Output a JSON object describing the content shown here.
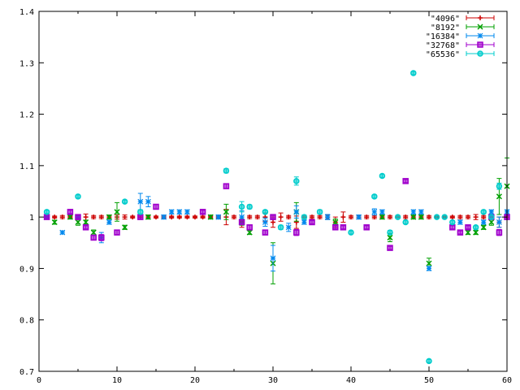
{
  "chart_data": {
    "type": "scatter",
    "title": "",
    "xlabel": "",
    "ylabel": "",
    "xlim": [
      0,
      60
    ],
    "ylim": [
      0.7,
      1.4
    ],
    "x_ticks": [
      0,
      10,
      20,
      30,
      40,
      50,
      60
    ],
    "y_ticks": [
      0.7,
      0.8,
      0.9,
      1,
      1.1,
      1.2,
      1.3,
      1.4
    ],
    "x_tick_labels": [
      "0",
      "10",
      "20",
      "30",
      "40",
      "50",
      "60"
    ],
    "y_tick_labels": [
      "0.7",
      "0.8",
      "0.9",
      "1",
      "1.1",
      "1.2",
      "1.3",
      "1.4"
    ],
    "grid": false,
    "legend_position": "top-right",
    "series": [
      {
        "name": "\"4096\"",
        "color": "#cc0000",
        "marker": "plus",
        "points": [
          {
            "x": 1,
            "y": 1.0,
            "err": 0.002
          },
          {
            "x": 2,
            "y": 1.0,
            "err": 0.002
          },
          {
            "x": 3,
            "y": 1.0,
            "err": 0.003
          },
          {
            "x": 4,
            "y": 1.0,
            "err": 0.002
          },
          {
            "x": 5,
            "y": 1.0,
            "err": 0.004
          },
          {
            "x": 6,
            "y": 1.0,
            "err": 0.006
          },
          {
            "x": 7,
            "y": 1.0,
            "err": 0.003
          },
          {
            "x": 8,
            "y": 1.0,
            "err": 0.003
          },
          {
            "x": 9,
            "y": 1.0,
            "err": 0.003
          },
          {
            "x": 10,
            "y": 1.0,
            "err": 0.004
          },
          {
            "x": 11,
            "y": 1.0,
            "err": 0.004
          },
          {
            "x": 12,
            "y": 1.0,
            "err": 0.002
          },
          {
            "x": 13,
            "y": 1.0,
            "err": 0.003
          },
          {
            "x": 14,
            "y": 1.0,
            "err": 0.003
          },
          {
            "x": 15,
            "y": 1.0,
            "err": 0.002
          },
          {
            "x": 16,
            "y": 1.0,
            "err": 0.002
          },
          {
            "x": 17,
            "y": 1.0,
            "err": 0.002
          },
          {
            "x": 18,
            "y": 1.0,
            "err": 0.002
          },
          {
            "x": 19,
            "y": 1.0,
            "err": 0.002
          },
          {
            "x": 20,
            "y": 1.0,
            "err": 0.002
          },
          {
            "x": 21,
            "y": 1.0,
            "err": 0.002
          },
          {
            "x": 22,
            "y": 1.0,
            "err": 0.002
          },
          {
            "x": 23,
            "y": 1.0,
            "err": 0.002
          },
          {
            "x": 24,
            "y": 1.0,
            "err": 0.015
          },
          {
            "x": 25,
            "y": 1.0,
            "err": 0.003
          },
          {
            "x": 26,
            "y": 0.99,
            "err": 0.01
          },
          {
            "x": 27,
            "y": 1.0,
            "err": 0.003
          },
          {
            "x": 28,
            "y": 1.0,
            "err": 0.003
          },
          {
            "x": 29,
            "y": 1.0,
            "err": 0.008
          },
          {
            "x": 30,
            "y": 0.99,
            "err": 0.01
          },
          {
            "x": 31,
            "y": 1.0,
            "err": 0.008
          },
          {
            "x": 32,
            "y": 1.0,
            "err": 0.003
          },
          {
            "x": 33,
            "y": 0.99,
            "err": 0.012
          },
          {
            "x": 34,
            "y": 1.0,
            "err": 0.003
          },
          {
            "x": 35,
            "y": 1.0,
            "err": 0.003
          },
          {
            "x": 36,
            "y": 1.0,
            "err": 0.003
          },
          {
            "x": 37,
            "y": 1.0,
            "err": 0.004
          },
          {
            "x": 38,
            "y": 0.99,
            "err": 0.01
          },
          {
            "x": 39,
            "y": 1.0,
            "err": 0.01
          },
          {
            "x": 40,
            "y": 1.0,
            "err": 0.003
          },
          {
            "x": 41,
            "y": 1.0,
            "err": 0.003
          },
          {
            "x": 42,
            "y": 1.0,
            "err": 0.003
          },
          {
            "x": 43,
            "y": 1.0,
            "err": 0.003
          },
          {
            "x": 44,
            "y": 1.0,
            "err": 0.003
          },
          {
            "x": 45,
            "y": 1.0,
            "err": 0.003
          },
          {
            "x": 46,
            "y": 1.0,
            "err": 0.003
          },
          {
            "x": 47,
            "y": 1.0,
            "err": 0.003
          },
          {
            "x": 48,
            "y": 1.0,
            "err": 0.003
          },
          {
            "x": 49,
            "y": 1.0,
            "err": 0.003
          },
          {
            "x": 50,
            "y": 1.0,
            "err": 0.003
          },
          {
            "x": 51,
            "y": 1.0,
            "err": 0.002
          },
          {
            "x": 52,
            "y": 1.0,
            "err": 0.002
          },
          {
            "x": 53,
            "y": 1.0,
            "err": 0.002
          },
          {
            "x": 54,
            "y": 1.0,
            "err": 0.003
          },
          {
            "x": 55,
            "y": 1.0,
            "err": 0.003
          },
          {
            "x": 56,
            "y": 1.0,
            "err": 0.005
          },
          {
            "x": 57,
            "y": 1.0,
            "err": 0.003
          },
          {
            "x": 58,
            "y": 1.0,
            "err": 0.003
          },
          {
            "x": 59,
            "y": 0.99,
            "err": 0.01
          },
          {
            "x": 60,
            "y": 1.0,
            "err": 0.003
          }
        ]
      },
      {
        "name": "\"8192\"",
        "color": "#00a000",
        "marker": "cross",
        "points": [
          {
            "x": 1,
            "y": 1.0,
            "err": 0.003
          },
          {
            "x": 2,
            "y": 0.99,
            "err": 0.004
          },
          {
            "x": 4,
            "y": 1.0,
            "err": 0.004
          },
          {
            "x": 5,
            "y": 0.99,
            "err": 0.006
          },
          {
            "x": 6,
            "y": 0.99,
            "err": 0.004
          },
          {
            "x": 7,
            "y": 0.97,
            "err": 0.005
          },
          {
            "x": 9,
            "y": 1.0,
            "err": 0.004
          },
          {
            "x": 10,
            "y": 1.01,
            "err": 0.018
          },
          {
            "x": 11,
            "y": 0.98,
            "err": 0.004
          },
          {
            "x": 14,
            "y": 1.0,
            "err": 0.004
          },
          {
            "x": 22,
            "y": 1.0,
            "err": 0.004
          },
          {
            "x": 24,
            "y": 1.01,
            "err": 0.015
          },
          {
            "x": 26,
            "y": 0.99,
            "err": 0.006
          },
          {
            "x": 27,
            "y": 0.97,
            "err": 0.004
          },
          {
            "x": 30,
            "y": 0.91,
            "err": 0.04
          },
          {
            "x": 33,
            "y": 1.01,
            "err": 0.018
          },
          {
            "x": 38,
            "y": 0.99,
            "err": 0.006
          },
          {
            "x": 44,
            "y": 1.0,
            "err": 0.004
          },
          {
            "x": 45,
            "y": 0.96,
            "err": 0.008
          },
          {
            "x": 48,
            "y": 1.0,
            "err": 0.004
          },
          {
            "x": 49,
            "y": 1.0,
            "err": 0.004
          },
          {
            "x": 50,
            "y": 0.91,
            "err": 0.01
          },
          {
            "x": 55,
            "y": 0.97,
            "err": 0.004
          },
          {
            "x": 56,
            "y": 0.97,
            "err": 0.004
          },
          {
            "x": 57,
            "y": 0.98,
            "err": 0.004
          },
          {
            "x": 58,
            "y": 0.99,
            "err": 0.006
          },
          {
            "x": 59,
            "y": 1.04,
            "err": 0.035
          },
          {
            "x": 60,
            "y": 1.06,
            "err": 0.055
          }
        ]
      },
      {
        "name": "\"16384\"",
        "color": "#0088ee",
        "marker": "star",
        "points": [
          {
            "x": 1,
            "y": 1.0,
            "err": 0.003
          },
          {
            "x": 3,
            "y": 0.97,
            "err": 0.003
          },
          {
            "x": 5,
            "y": 1.0,
            "err": 0.003
          },
          {
            "x": 8,
            "y": 0.96,
            "err": 0.01
          },
          {
            "x": 9,
            "y": 0.99,
            "err": 0.004
          },
          {
            "x": 13,
            "y": 1.03,
            "err": 0.016
          },
          {
            "x": 14,
            "y": 1.03,
            "err": 0.01
          },
          {
            "x": 16,
            "y": 1.0,
            "err": 0.004
          },
          {
            "x": 17,
            "y": 1.01,
            "err": 0.004
          },
          {
            "x": 18,
            "y": 1.01,
            "err": 0.004
          },
          {
            "x": 19,
            "y": 1.01,
            "err": 0.004
          },
          {
            "x": 23,
            "y": 1.0,
            "err": 0.004
          },
          {
            "x": 26,
            "y": 1.0,
            "err": 0.012
          },
          {
            "x": 29,
            "y": 0.99,
            "err": 0.008
          },
          {
            "x": 30,
            "y": 0.92,
            "err": 0.025
          },
          {
            "x": 32,
            "y": 0.98,
            "err": 0.008
          },
          {
            "x": 33,
            "y": 1.01,
            "err": 0.012
          },
          {
            "x": 34,
            "y": 0.99,
            "err": 0.004
          },
          {
            "x": 37,
            "y": 1.0,
            "err": 0.005
          },
          {
            "x": 41,
            "y": 1.0,
            "err": 0.004
          },
          {
            "x": 43,
            "y": 1.01,
            "err": 0.006
          },
          {
            "x": 44,
            "y": 1.01,
            "err": 0.004
          },
          {
            "x": 48,
            "y": 1.01,
            "err": 0.004
          },
          {
            "x": 49,
            "y": 1.01,
            "err": 0.004
          },
          {
            "x": 50,
            "y": 0.9,
            "err": 0.004
          },
          {
            "x": 54,
            "y": 0.99,
            "err": 0.004
          },
          {
            "x": 57,
            "y": 0.99,
            "err": 0.004
          },
          {
            "x": 58,
            "y": 1.01,
            "err": 0.004
          },
          {
            "x": 59,
            "y": 0.99,
            "err": 0.01
          },
          {
            "x": 60,
            "y": 1.01,
            "err": 0.004
          }
        ]
      },
      {
        "name": "\"32768\"",
        "color": "#a000cc",
        "marker": "square",
        "points": [
          {
            "x": 1,
            "y": 1.0,
            "err": 0.002
          },
          {
            "x": 4,
            "y": 1.01,
            "err": 0.003
          },
          {
            "x": 5,
            "y": 1.0,
            "err": 0.003
          },
          {
            "x": 6,
            "y": 0.98,
            "err": 0.003
          },
          {
            "x": 7,
            "y": 0.96,
            "err": 0.004
          },
          {
            "x": 8,
            "y": 0.96,
            "err": 0.006
          },
          {
            "x": 10,
            "y": 0.97,
            "err": 0.004
          },
          {
            "x": 13,
            "y": 1.0,
            "err": 0.003
          },
          {
            "x": 15,
            "y": 1.02,
            "err": 0.004
          },
          {
            "x": 21,
            "y": 1.01,
            "err": 0.003
          },
          {
            "x": 24,
            "y": 1.06,
            "err": 0.004
          },
          {
            "x": 26,
            "y": 0.99,
            "err": 0.004
          },
          {
            "x": 27,
            "y": 0.98,
            "err": 0.004
          },
          {
            "x": 29,
            "y": 0.97,
            "err": 0.004
          },
          {
            "x": 30,
            "y": 1.0,
            "err": 0.003
          },
          {
            "x": 33,
            "y": 0.97,
            "err": 0.006
          },
          {
            "x": 35,
            "y": 0.99,
            "err": 0.003
          },
          {
            "x": 38,
            "y": 0.98,
            "err": 0.003
          },
          {
            "x": 39,
            "y": 0.98,
            "err": 0.003
          },
          {
            "x": 42,
            "y": 0.98,
            "err": 0.003
          },
          {
            "x": 45,
            "y": 0.94,
            "err": 0.003
          },
          {
            "x": 47,
            "y": 1.07,
            "err": 0.003
          },
          {
            "x": 53,
            "y": 0.98,
            "err": 0.003
          },
          {
            "x": 54,
            "y": 0.97,
            "err": 0.003
          },
          {
            "x": 55,
            "y": 0.98,
            "err": 0.003
          },
          {
            "x": 58,
            "y": 1.0,
            "err": 0.003
          },
          {
            "x": 59,
            "y": 0.97,
            "err": 0.006
          },
          {
            "x": 60,
            "y": 1.0,
            "err": 0.003
          }
        ]
      },
      {
        "name": "\"65536\"",
        "color": "#00cccc",
        "marker": "circle",
        "points": [
          {
            "x": 1,
            "y": 1.01,
            "err": 0.003
          },
          {
            "x": 5,
            "y": 1.04,
            "err": 0.003
          },
          {
            "x": 11,
            "y": 1.03,
            "err": 0.003
          },
          {
            "x": 13,
            "y": 1.01,
            "err": 0.004
          },
          {
            "x": 24,
            "y": 1.09,
            "err": 0.004
          },
          {
            "x": 26,
            "y": 1.02,
            "err": 0.01
          },
          {
            "x": 27,
            "y": 1.02,
            "err": 0.004
          },
          {
            "x": 29,
            "y": 1.01,
            "err": 0.003
          },
          {
            "x": 31,
            "y": 0.98,
            "err": 0.004
          },
          {
            "x": 33,
            "y": 1.07,
            "err": 0.008
          },
          {
            "x": 34,
            "y": 1.0,
            "err": 0.004
          },
          {
            "x": 36,
            "y": 1.01,
            "err": 0.004
          },
          {
            "x": 40,
            "y": 0.97,
            "err": 0.003
          },
          {
            "x": 43,
            "y": 1.04,
            "err": 0.003
          },
          {
            "x": 44,
            "y": 1.08,
            "err": 0.003
          },
          {
            "x": 45,
            "y": 0.97,
            "err": 0.004
          },
          {
            "x": 46,
            "y": 1.0,
            "err": 0.003
          },
          {
            "x": 47,
            "y": 0.99,
            "err": 0.003
          },
          {
            "x": 48,
            "y": 1.28,
            "err": 0.003
          },
          {
            "x": 50,
            "y": 0.72,
            "err": 0.003
          },
          {
            "x": 51,
            "y": 1.0,
            "err": 0.003
          },
          {
            "x": 52,
            "y": 1.0,
            "err": 0.003
          },
          {
            "x": 53,
            "y": 0.99,
            "err": 0.003
          },
          {
            "x": 56,
            "y": 0.98,
            "err": 0.003
          },
          {
            "x": 57,
            "y": 1.01,
            "err": 0.003
          },
          {
            "x": 58,
            "y": 1.0,
            "err": 0.004
          },
          {
            "x": 59,
            "y": 1.06,
            "err": 0.006
          }
        ]
      }
    ]
  }
}
